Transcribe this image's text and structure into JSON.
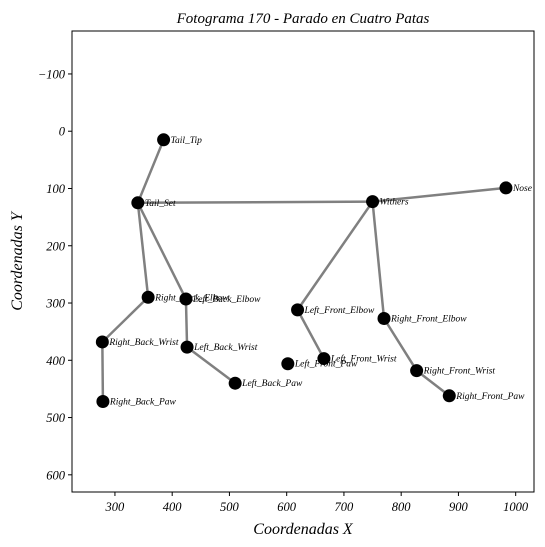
{
  "chart_data": {
    "type": "scatter",
    "title": "Fotograma 170 - Parado en Cuatro Patas",
    "xlabel": "Coordenadas X",
    "ylabel": "Coordenadas Y",
    "xlim": [
      225,
      1032
    ],
    "ylim": [
      630,
      -175
    ],
    "y_inverted": true,
    "grid": false,
    "xticks": [
      300,
      400,
      500,
      600,
      700,
      800,
      900,
      1000
    ],
    "yticks": [
      -100,
      0,
      100,
      200,
      300,
      400,
      500,
      600
    ],
    "ytick_labels": [
      "−100",
      "0",
      "100",
      "200",
      "300",
      "400",
      "500",
      "600"
    ],
    "point_color": "#000000",
    "edge_color": "#808080",
    "points": [
      {
        "name": "Tail_Tip",
        "x": 385,
        "y": 15
      },
      {
        "name": "Tail_Set",
        "x": 340,
        "y": 125
      },
      {
        "name": "Withers",
        "x": 750,
        "y": 123
      },
      {
        "name": "Nose",
        "x": 983,
        "y": 99
      },
      {
        "name": "Right_Back_Elbow",
        "x": 358,
        "y": 290
      },
      {
        "name": "Left_Back_Elbow",
        "x": 424,
        "y": 293
      },
      {
        "name": "Right_Back_Wrist",
        "x": 278,
        "y": 368
      },
      {
        "name": "Right_Back_Paw",
        "x": 279,
        "y": 472
      },
      {
        "name": "Left_Back_Wrist",
        "x": 426,
        "y": 377
      },
      {
        "name": "Left_Back_Paw",
        "x": 510,
        "y": 440
      },
      {
        "name": "Left_Front_Elbow",
        "x": 619,
        "y": 312
      },
      {
        "name": "Left_Front_Wrist",
        "x": 665,
        "y": 397
      },
      {
        "name": "Left_Front_Paw",
        "x": 602,
        "y": 406
      },
      {
        "name": "Right_Front_Elbow",
        "x": 770,
        "y": 327
      },
      {
        "name": "Right_Front_Wrist",
        "x": 827,
        "y": 418
      },
      {
        "name": "Right_Front_Paw",
        "x": 884,
        "y": 462
      }
    ],
    "edges": [
      [
        "Tail_Tip",
        "Tail_Set"
      ],
      [
        "Tail_Set",
        "Withers"
      ],
      [
        "Withers",
        "Nose"
      ],
      [
        "Tail_Set",
        "Right_Back_Elbow"
      ],
      [
        "Tail_Set",
        "Left_Back_Elbow"
      ],
      [
        "Right_Back_Elbow",
        "Right_Back_Wrist"
      ],
      [
        "Right_Back_Wrist",
        "Right_Back_Paw"
      ],
      [
        "Left_Back_Elbow",
        "Left_Back_Wrist"
      ],
      [
        "Left_Back_Wrist",
        "Left_Back_Paw"
      ],
      [
        "Withers",
        "Left_Front_Elbow"
      ],
      [
        "Left_Front_Elbow",
        "Left_Front_Wrist"
      ],
      [
        "Withers",
        "Right_Front_Elbow"
      ],
      [
        "Right_Front_Elbow",
        "Right_Front_Wrist"
      ],
      [
        "Right_Front_Wrist",
        "Right_Front_Paw"
      ]
    ]
  }
}
